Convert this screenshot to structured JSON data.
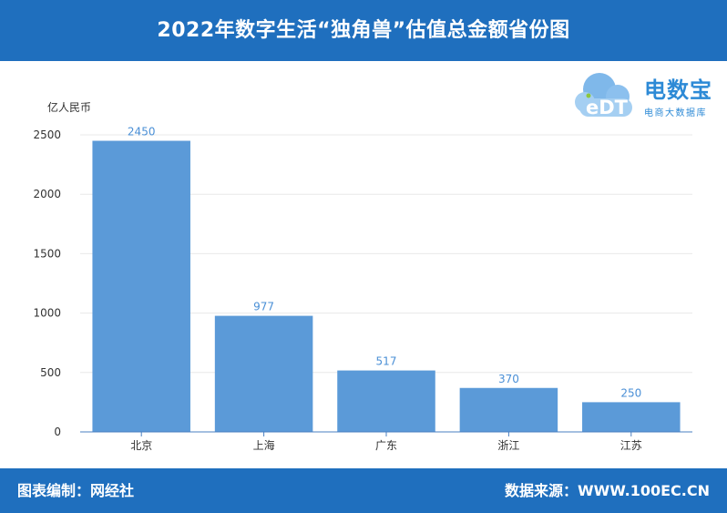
{
  "header": {
    "title": "2022年数字生活“独角兽”估值总金额省份图"
  },
  "logo": {
    "icon": "cloud-edt-logo",
    "mark_text": "eDT",
    "name": "电数宝",
    "subtitle": "电商大数据库"
  },
  "footer": {
    "editor": "图表编制：网经社",
    "source": "数据来源：WWW.100EC.CN"
  },
  "colors": {
    "band": "#1f6fbe",
    "bar": "#5b9ad8",
    "value_label": "#4a8fd6",
    "axis": "#4a7fc1"
  },
  "chart_data": {
    "type": "bar",
    "unit": "亿人民币",
    "categories": [
      "北京",
      "上海",
      "广东",
      "浙江",
      "江苏"
    ],
    "values": [
      2450,
      977,
      517,
      370,
      250
    ],
    "value_labels": [
      "2450",
      "977",
      "517",
      "370",
      "250"
    ],
    "ylim": [
      0,
      2500
    ],
    "yticks": [
      0,
      500,
      1000,
      1500,
      2000,
      2500
    ],
    "ytick_labels": [
      "0",
      "500",
      "1000",
      "1500",
      "2000",
      "2500"
    ],
    "grid": true,
    "legend": "none"
  }
}
